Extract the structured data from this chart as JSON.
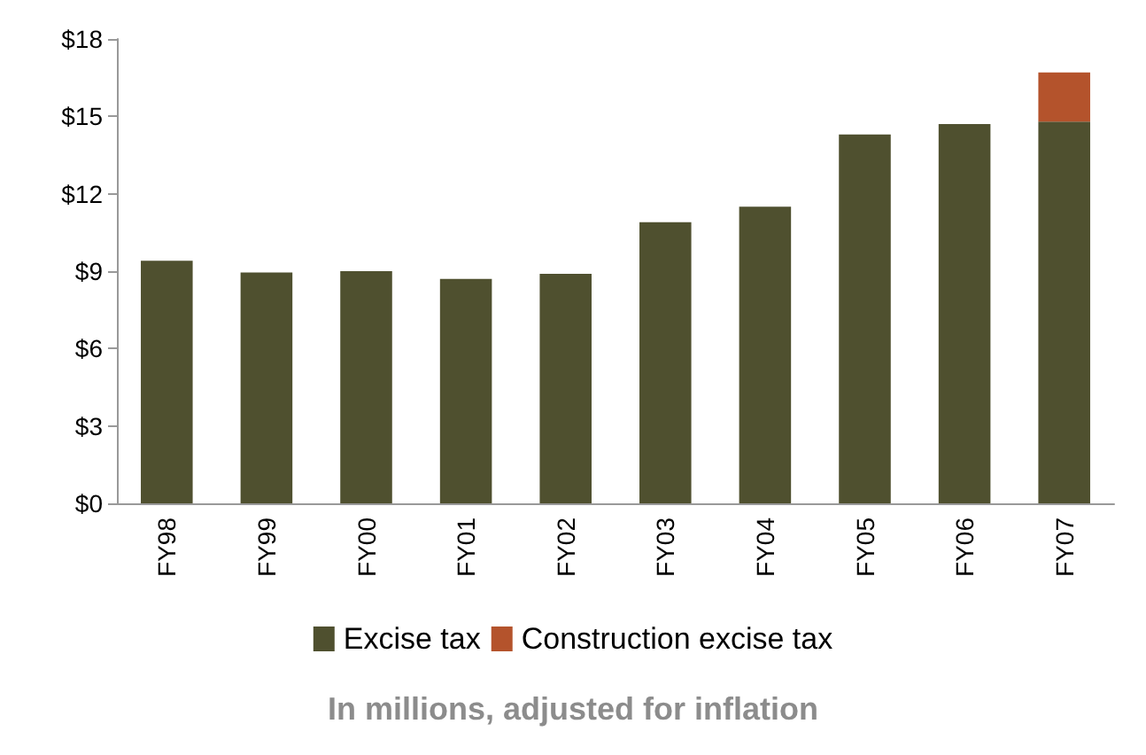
{
  "chart_data": {
    "type": "bar",
    "stacked": true,
    "categories": [
      "FY98",
      "FY99",
      "FY00",
      "FY01",
      "FY02",
      "FY03",
      "FY04",
      "FY05",
      "FY06",
      "FY07"
    ],
    "series": [
      {
        "name": "Excise tax",
        "color": "#4f502f",
        "values": [
          9.4,
          8.95,
          9.0,
          8.7,
          8.9,
          10.9,
          11.5,
          14.3,
          14.7,
          14.8
        ]
      },
      {
        "name": "Construction excise tax",
        "color": "#b4532c",
        "values": [
          null,
          null,
          null,
          null,
          null,
          null,
          null,
          null,
          null,
          1.9
        ]
      }
    ],
    "ylim": [
      0,
      18
    ],
    "yticks": [
      {
        "value": 0,
        "label": "$0"
      },
      {
        "value": 3,
        "label": "$3"
      },
      {
        "value": 6,
        "label": "$6"
      },
      {
        "value": 9,
        "label": "$9"
      },
      {
        "value": 12,
        "label": "$12"
      },
      {
        "value": 15,
        "label": "$15"
      },
      {
        "value": 18,
        "label": "$18"
      }
    ],
    "grid": false,
    "legend": "bottom",
    "annotations": [
      "In millions, adjusted for inflation"
    ]
  }
}
